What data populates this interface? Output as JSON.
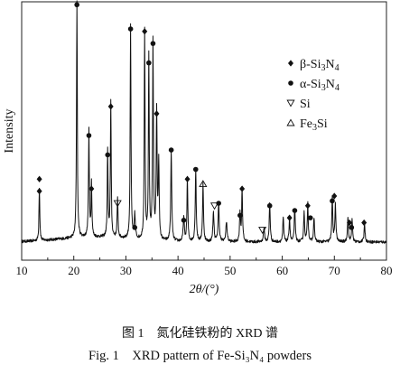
{
  "chart_data": {
    "type": "line",
    "xlabel": "2θ/(°)",
    "ylabel": "Intensity",
    "xlim": [
      10,
      80
    ],
    "x_ticks": [
      10,
      20,
      30,
      40,
      50,
      60,
      70,
      80
    ],
    "y_ticks_shown": false,
    "grid": false,
    "legend_position": "top-right",
    "legend": [
      {
        "marker": "filled-diamond",
        "label": "β-Si3N4"
      },
      {
        "marker": "filled-circle",
        "label": "α-Si3N4"
      },
      {
        "marker": "open-down-triangle",
        "label": "Si"
      },
      {
        "marker": "open-up-triangle",
        "label": "Fe3Si"
      }
    ],
    "baseline": 0.06,
    "peaks": [
      {
        "x": 13.4,
        "h": 0.22,
        "w": 0.18
      },
      {
        "x": 20.6,
        "h": 0.98,
        "w": 0.18
      },
      {
        "x": 22.9,
        "h": 0.44,
        "w": 0.2
      },
      {
        "x": 23.4,
        "h": 0.22,
        "w": 0.18
      },
      {
        "x": 26.5,
        "h": 0.36,
        "w": 0.18
      },
      {
        "x": 27.1,
        "h": 0.56,
        "w": 0.18
      },
      {
        "x": 28.4,
        "h": 0.16,
        "w": 0.2
      },
      {
        "x": 30.9,
        "h": 0.88,
        "w": 0.18
      },
      {
        "x": 31.7,
        "h": 0.1,
        "w": 0.25
      },
      {
        "x": 33.6,
        "h": 0.87,
        "w": 0.18
      },
      {
        "x": 34.4,
        "h": 0.75,
        "w": 0.18
      },
      {
        "x": 35.2,
        "h": 0.82,
        "w": 0.2
      },
      {
        "x": 35.9,
        "h": 0.53,
        "w": 0.2
      },
      {
        "x": 36.3,
        "h": 0.32,
        "w": 0.2
      },
      {
        "x": 38.7,
        "h": 0.38,
        "w": 0.22
      },
      {
        "x": 41.1,
        "h": 0.1,
        "w": 0.25
      },
      {
        "x": 41.8,
        "h": 0.26,
        "w": 0.2
      },
      {
        "x": 43.4,
        "h": 0.3,
        "w": 0.22
      },
      {
        "x": 44.8,
        "h": 0.24,
        "w": 0.22
      },
      {
        "x": 46.8,
        "h": 0.12,
        "w": 0.25
      },
      {
        "x": 47.8,
        "h": 0.16,
        "w": 0.25
      },
      {
        "x": 49.3,
        "h": 0.08,
        "w": 0.3
      },
      {
        "x": 51.9,
        "h": 0.12,
        "w": 0.22
      },
      {
        "x": 52.3,
        "h": 0.22,
        "w": 0.2
      },
      {
        "x": 56.5,
        "h": 0.06,
        "w": 0.25
      },
      {
        "x": 57.6,
        "h": 0.16,
        "w": 0.22
      },
      {
        "x": 60.2,
        "h": 0.1,
        "w": 0.22
      },
      {
        "x": 61.4,
        "h": 0.1,
        "w": 0.22
      },
      {
        "x": 62.4,
        "h": 0.14,
        "w": 0.22
      },
      {
        "x": 64.2,
        "h": 0.12,
        "w": 0.22
      },
      {
        "x": 64.9,
        "h": 0.16,
        "w": 0.22
      },
      {
        "x": 66.1,
        "h": 0.1,
        "w": 0.22
      },
      {
        "x": 69.6,
        "h": 0.18,
        "w": 0.22
      },
      {
        "x": 70.2,
        "h": 0.16,
        "w": 0.22
      },
      {
        "x": 72.6,
        "h": 0.1,
        "w": 0.22
      },
      {
        "x": 73.4,
        "h": 0.09,
        "w": 0.22
      },
      {
        "x": 75.8,
        "h": 0.08,
        "w": 0.22
      }
    ],
    "phase_markers": [
      {
        "x": 13.4,
        "y": 0.32,
        "phase": "β-Si3N4"
      },
      {
        "x": 13.4,
        "y": 0.27,
        "phase": "β-Si3N4"
      },
      {
        "x": 20.6,
        "y": 1.04,
        "phase": "α-Si3N4"
      },
      {
        "x": 22.9,
        "y": 0.5,
        "phase": "α-Si3N4"
      },
      {
        "x": 23.4,
        "y": 0.28,
        "phase": "β-Si3N4"
      },
      {
        "x": 26.5,
        "y": 0.42,
        "phase": "α-Si3N4"
      },
      {
        "x": 27.1,
        "y": 0.62,
        "phase": "β-Si3N4"
      },
      {
        "x": 28.4,
        "y": 0.22,
        "phase": "Si"
      },
      {
        "x": 30.9,
        "y": 0.94,
        "phase": "α-Si3N4"
      },
      {
        "x": 31.7,
        "y": 0.12,
        "phase": "α-Si3N4"
      },
      {
        "x": 33.6,
        "y": 0.93,
        "phase": "β-Si3N4"
      },
      {
        "x": 34.4,
        "y": 0.8,
        "phase": "α-Si3N4"
      },
      {
        "x": 35.2,
        "y": 0.88,
        "phase": "α-Si3N4"
      },
      {
        "x": 35.9,
        "y": 0.59,
        "phase": "β-Si3N4"
      },
      {
        "x": 38.7,
        "y": 0.44,
        "phase": "α-Si3N4"
      },
      {
        "x": 41.1,
        "y": 0.15,
        "phase": "α-Si3N4"
      },
      {
        "x": 41.8,
        "y": 0.32,
        "phase": "β-Si3N4"
      },
      {
        "x": 43.4,
        "y": 0.36,
        "phase": "α-Si3N4"
      },
      {
        "x": 44.8,
        "y": 0.3,
        "phase": "Fe3Si"
      },
      {
        "x": 47.0,
        "y": 0.21,
        "phase": "Si"
      },
      {
        "x": 47.8,
        "y": 0.22,
        "phase": "α-Si3N4"
      },
      {
        "x": 51.9,
        "y": 0.17,
        "phase": "α-Si3N4"
      },
      {
        "x": 52.3,
        "y": 0.28,
        "phase": "β-Si3N4"
      },
      {
        "x": 56.2,
        "y": 0.11,
        "phase": "Si"
      },
      {
        "x": 57.6,
        "y": 0.21,
        "phase": "α-Si3N4"
      },
      {
        "x": 61.4,
        "y": 0.16,
        "phase": "β-Si3N4"
      },
      {
        "x": 62.4,
        "y": 0.19,
        "phase": "α-Si3N4"
      },
      {
        "x": 64.9,
        "y": 0.21,
        "phase": "β-Si3N4"
      },
      {
        "x": 65.4,
        "y": 0.16,
        "phase": "α-Si3N4"
      },
      {
        "x": 69.6,
        "y": 0.23,
        "phase": "α-Si3N4"
      },
      {
        "x": 70.0,
        "y": 0.25,
        "phase": "β-Si3N4"
      },
      {
        "x": 72.9,
        "y": 0.14,
        "phase": "β-Si3N4"
      },
      {
        "x": 73.3,
        "y": 0.12,
        "phase": "α-Si3N4"
      },
      {
        "x": 75.7,
        "y": 0.14,
        "phase": "β-Si3N4"
      }
    ]
  },
  "caption_zh": "图 1　氮化硅铁粉的 XRD 谱",
  "caption_en": "Fig. 1　XRD pattern of Fe-Si₃N₄ powders",
  "colors": {
    "line": "#111111",
    "axis": "#222222",
    "text": "#111111"
  }
}
